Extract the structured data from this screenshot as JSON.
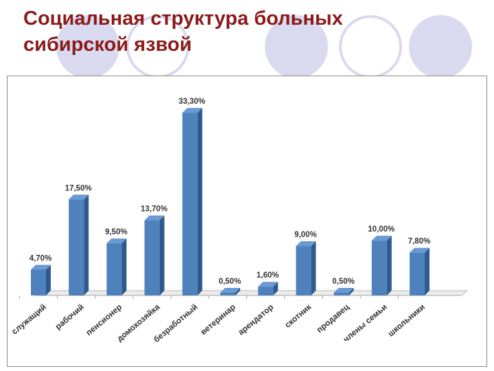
{
  "slide": {
    "title_line1": "Социальная структура больных",
    "title_line2": "сибирской язвой"
  },
  "colors": {
    "title": "#8b1a1a",
    "bar": "#4f81bd",
    "decor": "#d9d9ef"
  },
  "chart_data": {
    "type": "bar",
    "title": "",
    "categories": [
      "служащий",
      "рабочий",
      "пенсионер",
      "домохозяйка",
      "безработный",
      "ветеринар",
      "арендатор",
      "скотник",
      "продавец",
      "члены семьи",
      "школьники"
    ],
    "values": [
      4.7,
      17.5,
      9.5,
      13.7,
      33.3,
      0.5,
      1.6,
      9.0,
      0.5,
      10.0,
      7.8
    ],
    "data_labels": [
      "4,70%",
      "17,50%",
      "9,50%",
      "13,70%",
      "33,30%",
      "0,50%",
      "1,60%",
      "9,00%",
      "0,50%",
      "10,00%",
      "7,80%"
    ],
    "ylim": [
      0,
      35
    ],
    "grid": false,
    "legend": "none",
    "style": "3d-column"
  }
}
